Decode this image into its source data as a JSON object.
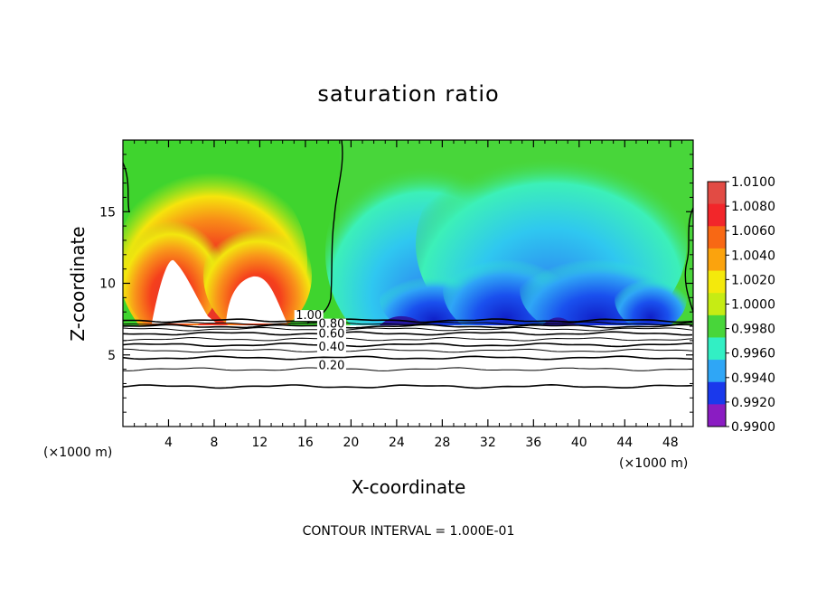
{
  "chart_data": {
    "type": "heatmap",
    "title": "saturation ratio",
    "xlabel": "X-coordinate",
    "ylabel": "Z-coordinate",
    "x_unit_left": "(×1000 m)",
    "x_unit_right": "(×1000 m)",
    "footer": "CONTOUR INTERVAL = 1.000E-01",
    "xlim": [
      0,
      50
    ],
    "ylim": [
      0,
      20
    ],
    "x_ticks": [
      "4",
      "8",
      "12",
      "16",
      "20",
      "24",
      "28",
      "32",
      "36",
      "40",
      "44",
      "48"
    ],
    "x_tick_values": [
      4,
      8,
      12,
      16,
      20,
      24,
      28,
      32,
      36,
      40,
      44,
      48
    ],
    "y_ticks": [
      "5",
      "10",
      "15"
    ],
    "y_tick_values": [
      5,
      10,
      15
    ],
    "colorbar": {
      "labels": [
        "1.0100",
        "1.0080",
        "1.0060",
        "1.0040",
        "1.0020",
        "1.0000",
        "0.9980",
        "0.9960",
        "0.9940",
        "0.9920",
        "0.9900"
      ],
      "colors": [
        "#e24b44",
        "#f2262a",
        "#f86814",
        "#fba30d",
        "#f4e90c",
        "#c6ec14",
        "#48d63a",
        "#32efc4",
        "#2fa6f6",
        "#1a39ec",
        "#8a1cc2"
      ]
    },
    "contour_labels": [
      {
        "text": "1.00",
        "x": 16.3,
        "y": 7.5
      },
      {
        "text": "0.80",
        "x": 18.3,
        "y": 6.9
      },
      {
        "text": "0.60",
        "x": 18.3,
        "y": 6.2
      },
      {
        "text": "0.40",
        "x": 18.3,
        "y": 5.3
      },
      {
        "text": "0.20",
        "x": 18.3,
        "y": 4.0
      }
    ],
    "contour_lines_z": [
      7.4,
      7.2,
      7.0,
      6.8,
      6.5,
      6.1,
      5.7,
      5.3,
      4.8,
      4.0,
      2.8
    ],
    "boundary_layer_top_z": 7.2
  }
}
